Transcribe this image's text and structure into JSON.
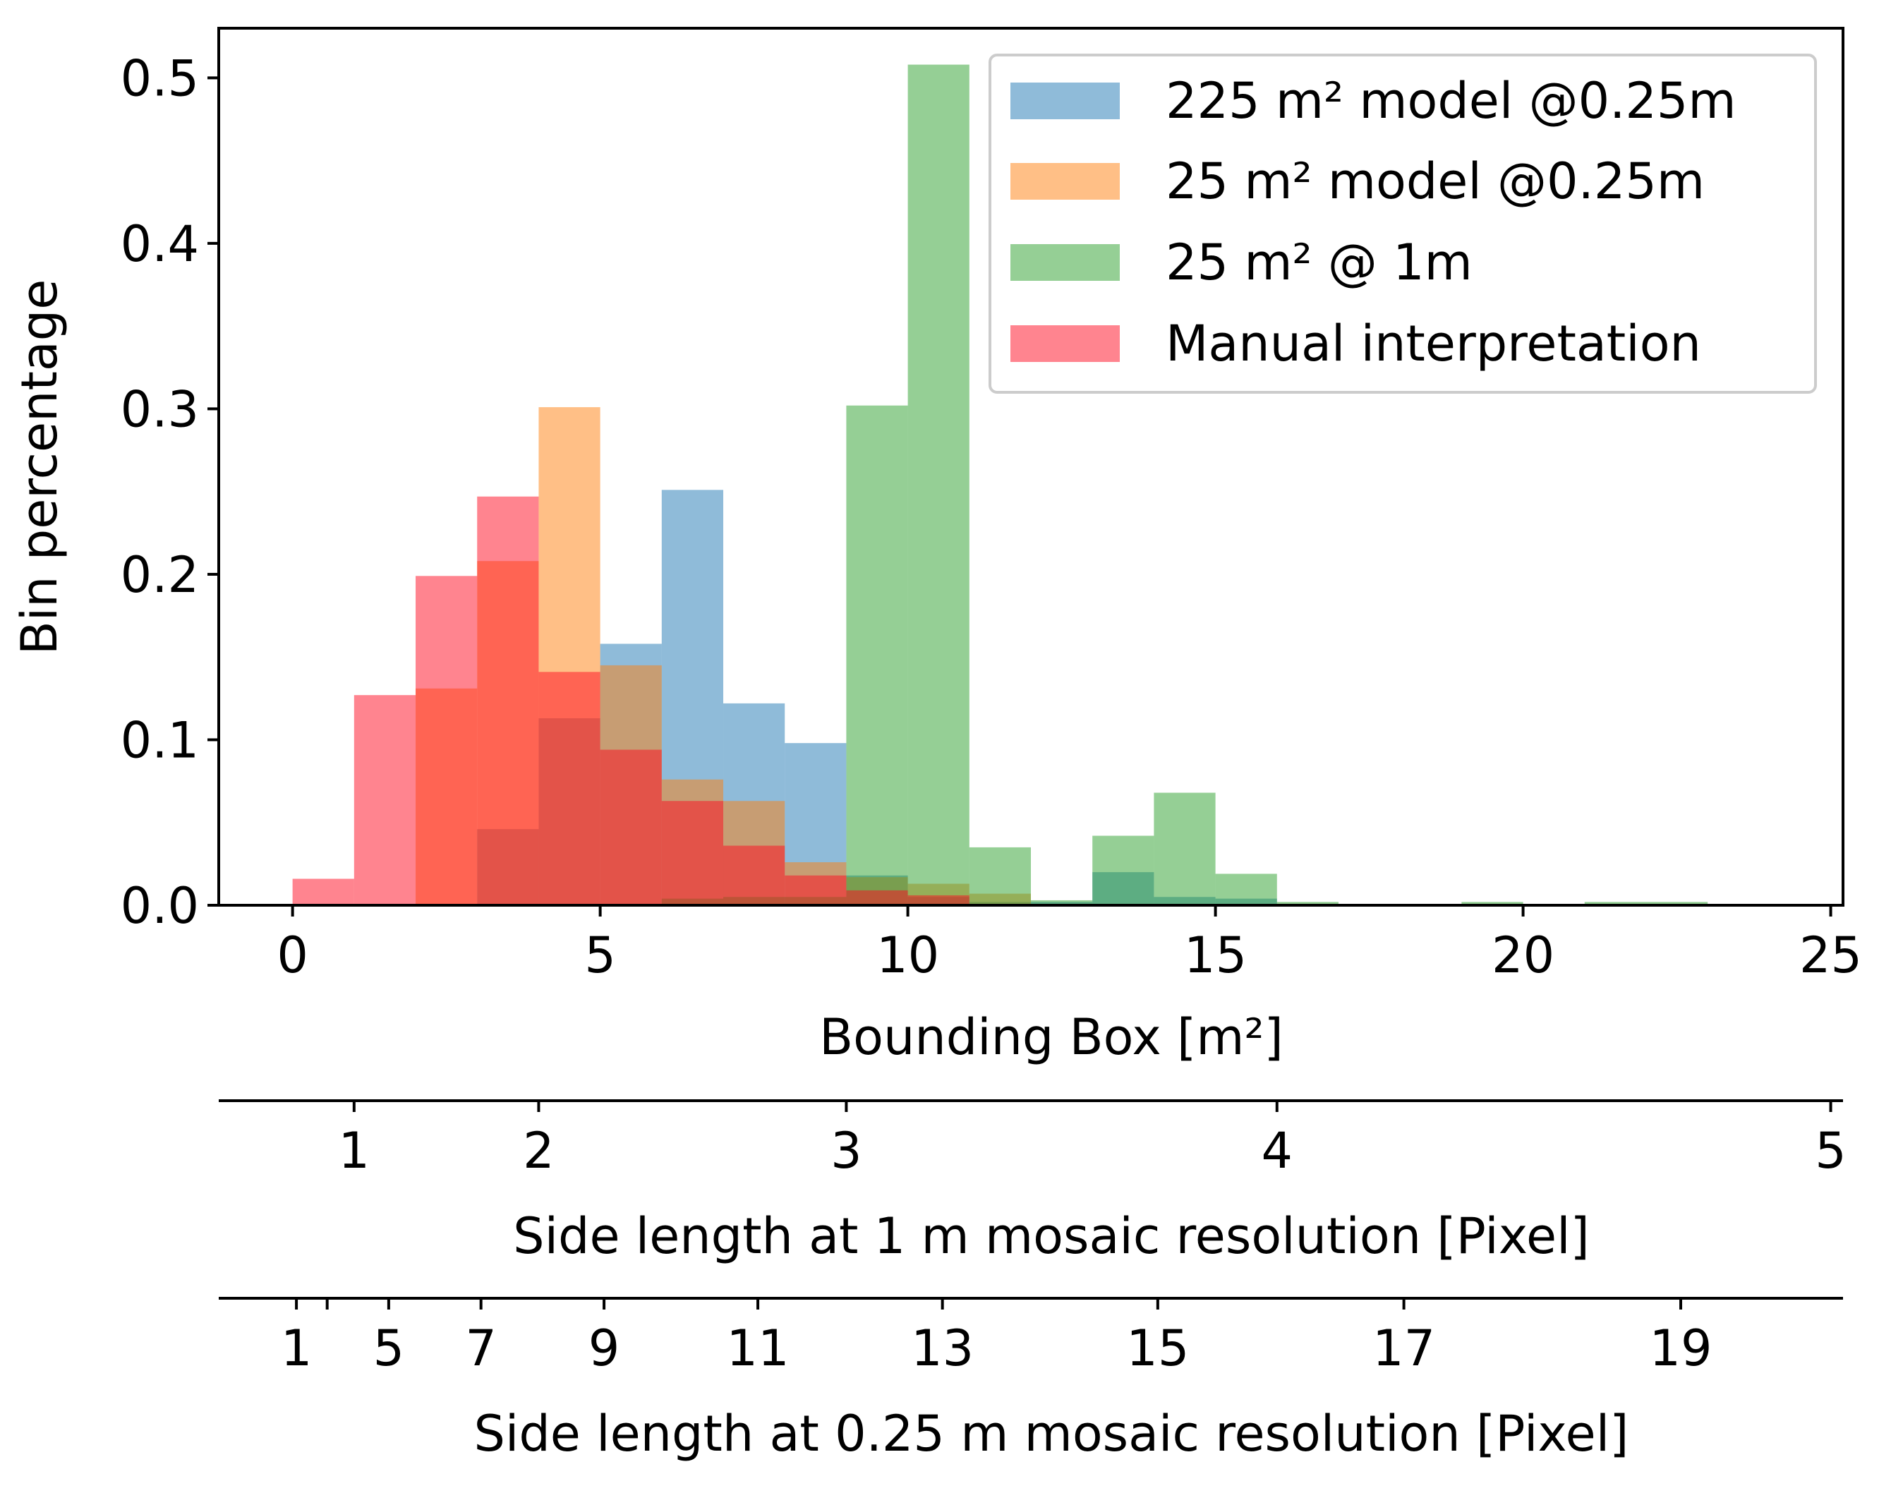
{
  "chart_data": {
    "type": "bar",
    "subtype": "overlaid-histogram",
    "title": "",
    "xlabel": "Bounding Box [m²]",
    "ylabel": "Bin percentage",
    "xlim": [
      -1.2,
      25.2
    ],
    "ylim": [
      0,
      0.53
    ],
    "xticks": [
      0,
      5,
      10,
      15,
      20,
      25
    ],
    "yticks": [
      0.0,
      0.1,
      0.2,
      0.3,
      0.4,
      0.5
    ],
    "xtick_labels": [
      "0",
      "5",
      "10",
      "15",
      "20",
      "25"
    ],
    "ytick_labels": [
      "0.0",
      "0.1",
      "0.2",
      "0.3",
      "0.4",
      "0.5"
    ],
    "bin_edges": [
      0,
      1,
      2,
      3,
      4,
      5,
      6,
      7,
      8,
      9,
      10,
      11,
      12,
      13,
      14,
      15,
      16,
      17,
      18,
      19,
      20,
      21,
      22,
      23
    ],
    "bar_opacity": 0.5,
    "legend_position": "top-right",
    "series": [
      {
        "name": "225 m² model @0.25m",
        "color": "#1f77b4",
        "legend_label": "225 m² model @0.25m",
        "values": [
          0,
          0,
          0,
          0.046,
          0.113,
          0.158,
          0.251,
          0.122,
          0.098,
          0.018,
          0.005,
          0.002,
          0.002,
          0.02,
          0.005,
          0.004,
          0,
          0,
          0,
          0,
          0,
          0,
          0
        ]
      },
      {
        "name": "25 m² model @0.25m",
        "color": "#ff7f0e",
        "legend_label": "25 m² model @0.25m",
        "values": [
          0,
          0,
          0.131,
          0.208,
          0.301,
          0.145,
          0.076,
          0.063,
          0.026,
          0.017,
          0.013,
          0.007,
          0,
          0,
          0,
          0,
          0,
          0,
          0,
          0,
          0,
          0,
          0
        ]
      },
      {
        "name": "25 m² @ 1m",
        "color": "#2ca02c",
        "legend_label": "25 m² @ 1m",
        "values": [
          0,
          0,
          0,
          0,
          0,
          0,
          0.004,
          0.005,
          0.005,
          0.302,
          0.508,
          0.035,
          0.003,
          0.042,
          0.068,
          0.019,
          0.002,
          0,
          0,
          0.002,
          0,
          0.002,
          0.002
        ]
      },
      {
        "name": "Manual interpretation",
        "color": "#ff0a1f",
        "legend_label": "Manual interpretation",
        "values": [
          0.016,
          0.127,
          0.199,
          0.247,
          0.141,
          0.094,
          0.063,
          0.036,
          0.018,
          0.009,
          0.006,
          0,
          0,
          0,
          0,
          0,
          0,
          0,
          0,
          0,
          0,
          0,
          0
        ]
      }
    ],
    "secondary_axes": [
      {
        "label": "Side length at 1 m mosaic resolution [Pixel]",
        "ticks": [
          {
            "label": "1",
            "value_m2": 1
          },
          {
            "label": "2",
            "value_m2": 4
          },
          {
            "label": "3",
            "value_m2": 9
          },
          {
            "label": "4",
            "value_m2": 16
          },
          {
            "label": "5",
            "value_m2": 25
          }
        ]
      },
      {
        "label": "Side length at 0.25 m mosaic resolution [Pixel]",
        "ticks": [
          {
            "label": "1",
            "value_m2": 0.0625
          },
          {
            "label": "",
            "value_m2": 0.5625
          },
          {
            "label": "5",
            "value_m2": 1.5625
          },
          {
            "label": "7",
            "value_m2": 3.0625
          },
          {
            "label": "9",
            "value_m2": 5.0625
          },
          {
            "label": "11",
            "value_m2": 7.5625
          },
          {
            "label": "13",
            "value_m2": 10.5625
          },
          {
            "label": "15",
            "value_m2": 14.0625
          },
          {
            "label": "17",
            "value_m2": 18.0625
          },
          {
            "label": "19",
            "value_m2": 22.5625
          }
        ]
      }
    ]
  }
}
